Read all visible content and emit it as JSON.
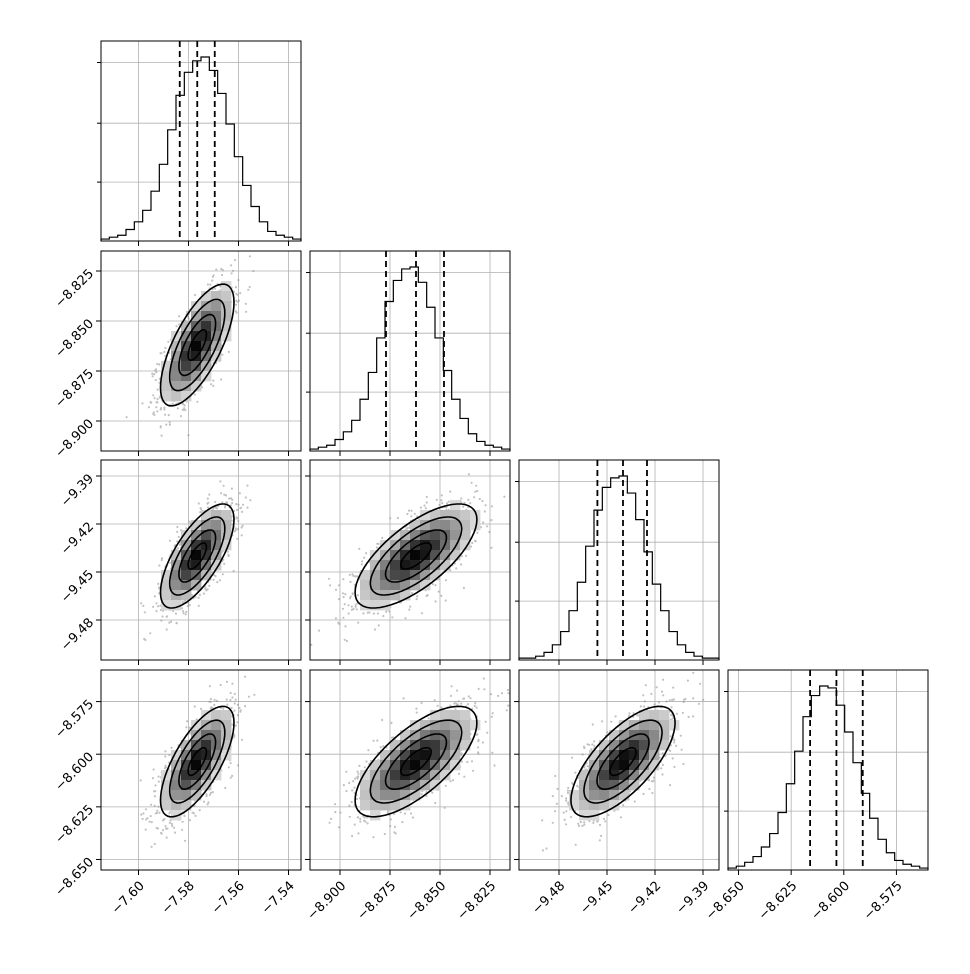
{
  "chart_data": {
    "type": "corner",
    "parameters": [
      {
        "range": [
          -7.615,
          -7.535
        ],
        "ticks": [
          -7.6,
          -7.58,
          -7.56,
          -7.54
        ],
        "tick_labels": [
          "−7.60",
          "−7.58",
          "−7.56",
          "−7.54"
        ]
      },
      {
        "range": [
          -8.915,
          -8.815
        ],
        "ticks": [
          -8.9,
          -8.875,
          -8.85,
          -8.825
        ],
        "tick_labels": [
          "−8.900",
          "−8.875",
          "−8.850",
          "−8.825"
        ]
      },
      {
        "range": [
          -9.505,
          -9.38
        ],
        "ticks": [
          -9.48,
          -9.45,
          -9.42,
          -9.39
        ],
        "tick_labels": [
          "−9.48",
          "−9.45",
          "−9.42",
          "−9.39"
        ]
      },
      {
        "range": [
          -8.655,
          -8.56
        ],
        "ticks": [
          -8.65,
          -8.625,
          -8.6,
          -8.575
        ],
        "tick_labels": [
          "−8.650",
          "−8.625",
          "−8.600",
          "−8.575"
        ]
      }
    ],
    "quantiles": [
      [
        -7.5835,
        -7.5765,
        -7.5695
      ],
      [
        -8.877,
        -8.862,
        -8.848
      ],
      [
        -9.456,
        -9.44,
        -9.425
      ],
      [
        -8.616,
        -8.6035,
        -8.591
      ]
    ],
    "histograms": [
      {
        "range": [
          -7.615,
          -7.535
        ],
        "counts": [
          1,
          2,
          3,
          6,
          10,
          16,
          26,
          40,
          58,
          76,
          88,
          94,
          96,
          89,
          77,
          61,
          44,
          29,
          18,
          10,
          5,
          3,
          2,
          1
        ]
      },
      {
        "range": [
          -8.915,
          -8.815
        ],
        "counts": [
          1,
          2,
          3,
          6,
          10,
          16,
          27,
          41,
          59,
          78,
          89,
          95,
          96,
          88,
          75,
          59,
          42,
          27,
          17,
          9,
          5,
          3,
          2,
          1
        ]
      },
      {
        "range": [
          -9.505,
          -9.38
        ],
        "counts": [
          1,
          1,
          2,
          4,
          8,
          15,
          26,
          41,
          60,
          79,
          91,
          96,
          97,
          88,
          74,
          57,
          40,
          26,
          15,
          8,
          4,
          2,
          1,
          1
        ]
      },
      {
        "range": [
          -8.655,
          -8.56
        ],
        "counts": [
          1,
          2,
          4,
          7,
          12,
          19,
          30,
          45,
          62,
          80,
          91,
          96,
          95,
          86,
          72,
          56,
          40,
          27,
          16,
          9,
          5,
          3,
          2,
          1
        ]
      }
    ],
    "correlation": 0.7,
    "contour_levels": [
      0.5,
      1.0,
      1.5,
      2.0
    ],
    "grid": true,
    "histogram_grid": true,
    "colors": {
      "line": "#000000",
      "scatter": "#8f8f8f",
      "grid": "#b0b0b0"
    }
  }
}
